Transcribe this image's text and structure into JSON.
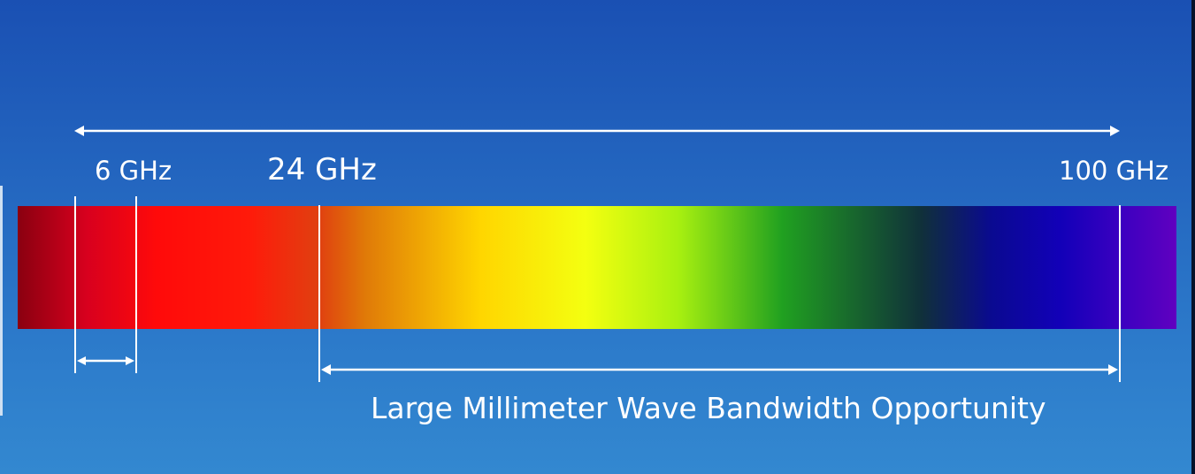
{
  "labels": {
    "freq_6": "6 GHz",
    "freq_24": "24 GHz",
    "freq_100": "100 GHz",
    "mmwave_caption": "Large Millimeter Wave Bandwidth Opportunity"
  },
  "colors": {
    "background_top": "#1a50b3",
    "background_bottom": "#3388d0",
    "annotation": "#ffffff",
    "spectrum_stops": [
      "#8a0010",
      "#d8001e",
      "#ff0a0a",
      "#e04010",
      "#e07a08",
      "#ffd600",
      "#f4ff10",
      "#80e010",
      "#20a020",
      "#10303a",
      "#0a0a90",
      "#1200b8",
      "#3a00c0",
      "#6000c0"
    ]
  }
}
